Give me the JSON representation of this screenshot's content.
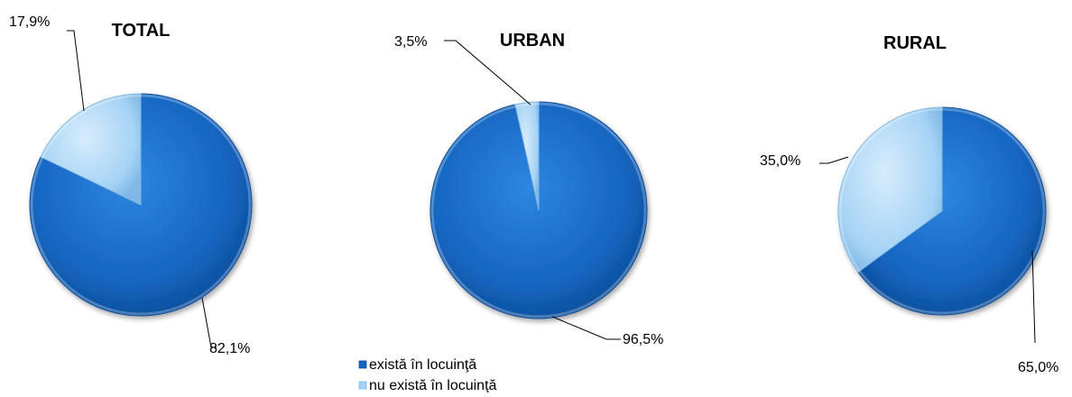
{
  "chart_data": [
    {
      "type": "pie",
      "title": "TOTAL",
      "slices": [
        {
          "label": "există în locuinţă",
          "value": 82.1,
          "display": "82,1%"
        },
        {
          "label": "nu există în locuinţă",
          "value": 17.9,
          "display": "17,9%"
        }
      ]
    },
    {
      "type": "pie",
      "title": "URBAN",
      "slices": [
        {
          "label": "există în locuinţă",
          "value": 96.5,
          "display": "96,5%"
        },
        {
          "label": "nu există în locuinţă",
          "value": 3.5,
          "display": "3,5%"
        }
      ]
    },
    {
      "type": "pie",
      "title": "RURAL",
      "slices": [
        {
          "label": "există în locuinţă",
          "value": 65.0,
          "display": "65,0%"
        },
        {
          "label": "nu există în locuinţă",
          "value": 35.0,
          "display": "35,0%"
        }
      ]
    }
  ],
  "legend": {
    "items": [
      {
        "label": "există în locuinţă",
        "color": "#1565C0"
      },
      {
        "label": "nu există în locuinţă",
        "color": "#A6D3F5"
      }
    ]
  },
  "colors": {
    "exists": "#1565C0",
    "not_exists": "#A6D3F5"
  }
}
